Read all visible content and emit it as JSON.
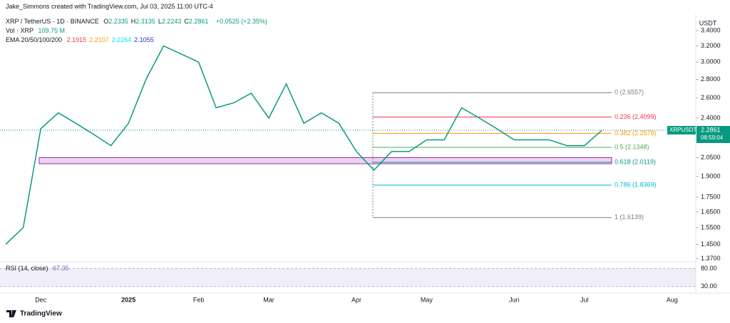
{
  "header": {
    "credit": "Jake_Simmons created with TradingView.com, Jul 03, 2025 11:00 UTC-4",
    "symbol": "XRP / TetherUS · 1D · BINANCE",
    "ohlc": [
      {
        "key": "O",
        "text": "2.2335"
      },
      {
        "key": "H",
        "text": "2.3135"
      },
      {
        "key": "L",
        "text": "2.2243"
      },
      {
        "key": "C",
        "text": "2.2861"
      }
    ],
    "change": "+0.0525 (+2.35%)",
    "volume_label": "Vol · XRP",
    "volume_value": "109.75 M",
    "ema_label": "EMA 20/50/100/200",
    "ema_values": [
      {
        "text": "2.1915",
        "color": "#f23645"
      },
      {
        "text": "2.2107",
        "color": "#ff9800"
      },
      {
        "text": "2.2264",
        "color": "#00e5ff"
      },
      {
        "text": "2.1055",
        "color": "#2a2ecc"
      }
    ],
    "rsi_label": "RSI (14, close)",
    "rsi_value": "67.35"
  },
  "chart_data": {
    "type": "line",
    "log_scale": true,
    "unit": "USDT",
    "categories": [
      null,
      null,
      "Dec",
      null,
      null,
      null,
      null,
      "2025",
      null,
      null,
      null,
      "Feb",
      null,
      null,
      null,
      "Mar",
      null,
      null,
      null,
      null,
      "Apr",
      null,
      null,
      null,
      "May",
      null,
      null,
      null,
      null,
      "Jun",
      null,
      null,
      null,
      "Jul",
      null,
      null,
      null,
      null,
      "Aug"
    ],
    "series": [
      {
        "name": "XRPUSDT",
        "color": "#089981",
        "values": [
          1.45,
          1.55,
          2.3,
          2.45,
          2.35,
          2.25,
          2.15,
          2.35,
          2.8,
          3.2,
          3.1,
          3.0,
          2.5,
          2.55,
          2.65,
          2.4,
          2.75,
          2.35,
          2.45,
          2.35,
          2.1,
          1.95,
          2.1,
          2.1,
          2.2,
          2.2,
          2.5,
          2.4,
          2.3,
          2.2,
          2.2,
          2.2,
          2.15,
          2.15,
          2.2861,
          null,
          null,
          null,
          null
        ]
      }
    ],
    "ylim": [
      1.36,
      3.55
    ],
    "yticks": [
      {
        "value": 3.4,
        "label": "3.4000"
      },
      {
        "value": 3.2,
        "label": "3.2000"
      },
      {
        "value": 3.0,
        "label": "3.0000"
      },
      {
        "value": 2.8,
        "label": "2.8000"
      },
      {
        "value": 2.6,
        "label": "2.6000"
      },
      {
        "value": 2.4,
        "label": "2.4000"
      },
      {
        "value": 2.2,
        "label": "2.2000"
      },
      {
        "value": 2.05,
        "label": "2.0500"
      },
      {
        "value": 1.9,
        "label": "1.9000"
      },
      {
        "value": 1.75,
        "label": "1.7500"
      },
      {
        "value": 1.65,
        "label": "1.6500"
      },
      {
        "value": 1.55,
        "label": "1.5500"
      },
      {
        "value": 1.45,
        "label": "1.4500"
      },
      {
        "value": 1.37,
        "label": "1.3700"
      }
    ],
    "price_tag": {
      "label": "XRPUSDT",
      "countdown": "08:59:04"
    },
    "zone": [
      2.0,
      2.05
    ],
    "fib_levels": [
      {
        "value": 2.6557,
        "label": "0 (2.6557)",
        "color": "#787b86"
      },
      {
        "value": 2.4099,
        "label": "0.236 (2.4099)",
        "color": "#f23645"
      },
      {
        "value": 2.2578,
        "label": "0.382 (2.2578)",
        "color": "#ff9800"
      },
      {
        "value": 2.1348,
        "label": "0.5 (2.1348)",
        "color": "#4caf50"
      },
      {
        "value": 2.0119,
        "label": "0.618 (2.0119)",
        "color": "#089981"
      },
      {
        "value": 1.8369,
        "label": "0.786 (1.8369)",
        "color": "#00bcd4"
      },
      {
        "value": 1.6139,
        "label": "1 (1.6139)",
        "color": "#787b86"
      }
    ],
    "rsi_ylim": [
      15,
      95
    ],
    "rsi_yticks": [
      {
        "value": 80,
        "label": "80.00"
      },
      {
        "value": 30,
        "label": "30.00"
      }
    ]
  },
  "footer": {
    "brand": "TradingView"
  }
}
